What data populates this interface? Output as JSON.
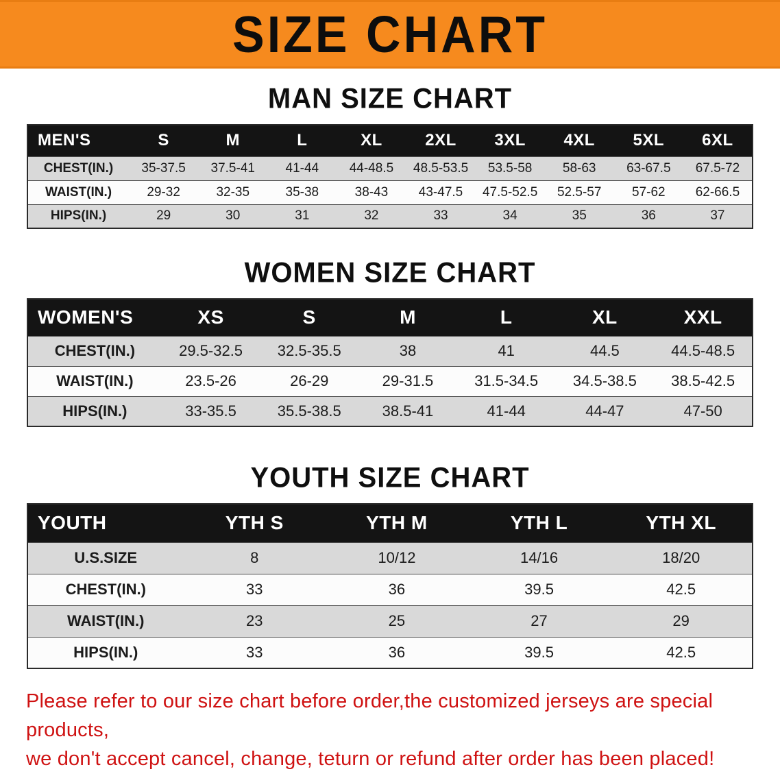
{
  "banner": {
    "title": "SIZE CHART"
  },
  "colors": {
    "banner_orange": "#f68a1e",
    "table_header_black": "#141414",
    "row_gray": "#d9d9d9",
    "notice_red": "#cf1212"
  },
  "chart_data": [
    {
      "type": "table",
      "title": "MAN SIZE CHART",
      "columns": [
        "MEN'S",
        "S",
        "M",
        "L",
        "XL",
        "2XL",
        "3XL",
        "4XL",
        "5XL",
        "6XL"
      ],
      "rows": [
        [
          "CHEST(IN.)",
          "35-37.5",
          "37.5-41",
          "41-44",
          "44-48.5",
          "48.5-53.5",
          "53.5-58",
          "58-63",
          "63-67.5",
          "67.5-72"
        ],
        [
          "WAIST(IN.)",
          "29-32",
          "32-35",
          "35-38",
          "38-43",
          "43-47.5",
          "47.5-52.5",
          "52.5-57",
          "57-62",
          "62-66.5"
        ],
        [
          "HIPS(IN.)",
          "29",
          "30",
          "31",
          "32",
          "33",
          "34",
          "35",
          "36",
          "37"
        ]
      ]
    },
    {
      "type": "table",
      "title": "WOMEN SIZE CHART",
      "columns": [
        "WOMEN'S",
        "XS",
        "S",
        "M",
        "L",
        "XL",
        "XXL"
      ],
      "rows": [
        [
          "CHEST(IN.)",
          "29.5-32.5",
          "32.5-35.5",
          "38",
          "41",
          "44.5",
          "44.5-48.5"
        ],
        [
          "WAIST(IN.)",
          "23.5-26",
          "26-29",
          "29-31.5",
          "31.5-34.5",
          "34.5-38.5",
          "38.5-42.5"
        ],
        [
          "HIPS(IN.)",
          "33-35.5",
          "35.5-38.5",
          "38.5-41",
          "41-44",
          "44-47",
          "47-50"
        ]
      ]
    },
    {
      "type": "table",
      "title": "YOUTH SIZE CHART",
      "columns": [
        "YOUTH",
        "YTH S",
        "YTH M",
        "YTH L",
        "YTH XL"
      ],
      "rows": [
        [
          "U.S.SIZE",
          "8",
          "10/12",
          "14/16",
          "18/20"
        ],
        [
          "CHEST(IN.)",
          "33",
          "36",
          "39.5",
          "42.5"
        ],
        [
          "WAIST(IN.)",
          "23",
          "25",
          "27",
          "29"
        ],
        [
          "HIPS(IN.)",
          "33",
          "36",
          "39.5",
          "42.5"
        ]
      ]
    }
  ],
  "footer": {
    "line1": "Please refer to our size chart before order,the customized jerseys are special products,",
    "line2": "we don't accept cancel, change, teturn or refund after order has been placed!"
  }
}
